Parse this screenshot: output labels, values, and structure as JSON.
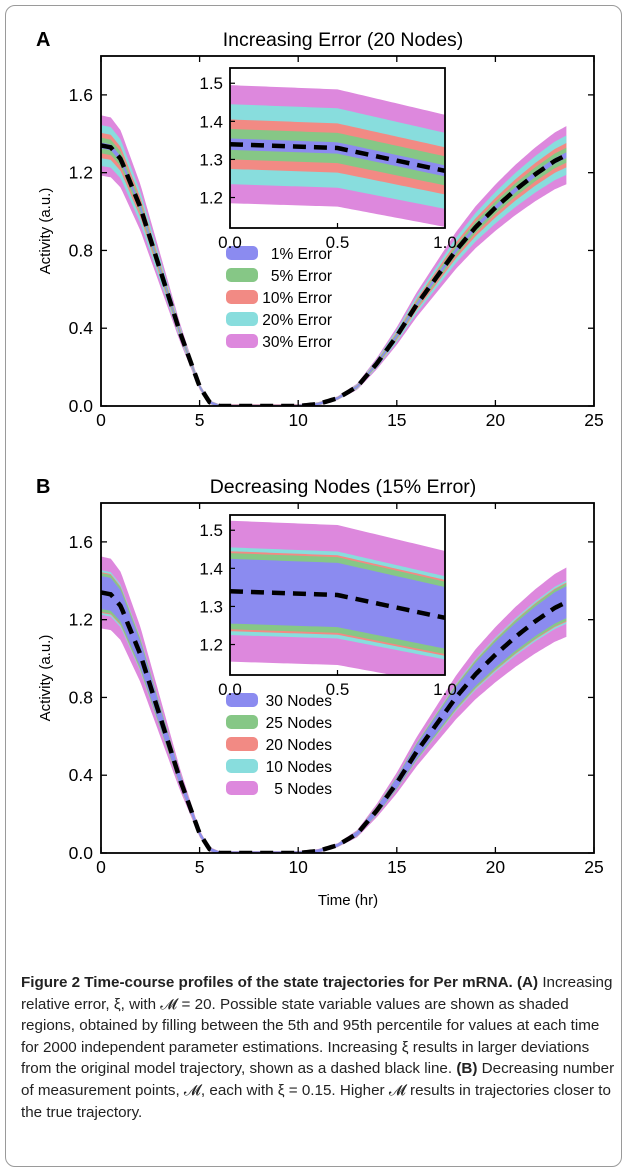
{
  "chart_data": [
    {
      "type": "area",
      "panel_label": "A",
      "title": "Increasing Error (20 Nodes)",
      "xlabel": "",
      "ylabel": "Activity (a.u.)",
      "xlim": [
        0,
        25
      ],
      "ylim": [
        0.0,
        1.8
      ],
      "x_ticks": [
        "0",
        "5",
        "10",
        "15",
        "20",
        "25"
      ],
      "y_ticks": [
        "0.0",
        "0.4",
        "0.8",
        "1.2",
        "1.6"
      ],
      "legend": [
        "1% Error",
        "5% Error",
        "10% Error",
        "20% Error",
        "30% Error"
      ],
      "legend_placement": "center",
      "series": [
        {
          "name": "30% Error",
          "color": "#dd88dd",
          "half_width": 0.15
        },
        {
          "name": "20% Error",
          "color": "#88dddd",
          "half_width": 0.1
        },
        {
          "name": "10% Error",
          "color": "#f28a84",
          "half_width": 0.06
        },
        {
          "name": "5% Error",
          "color": "#86c786",
          "half_width": 0.035
        },
        {
          "name": "1% Error",
          "color": "#8b8bf0",
          "half_width": 0.01
        }
      ],
      "inset": {
        "xlim": [
          0.0,
          1.0
        ],
        "ylim": [
          1.12,
          1.54
        ],
        "x_ticks": [
          "0.0",
          "0.5",
          "1.0"
        ],
        "y_ticks": [
          "1.2",
          "1.3",
          "1.4",
          "1.5"
        ]
      }
    },
    {
      "type": "area",
      "panel_label": "B",
      "title": "Decreasing Nodes (15% Error)",
      "xlabel": "Time (hr)",
      "ylabel": "Activity (a.u.)",
      "xlim": [
        0,
        25
      ],
      "ylim": [
        0.0,
        1.8
      ],
      "x_ticks": [
        "0",
        "5",
        "10",
        "15",
        "20",
        "25"
      ],
      "y_ticks": [
        "0.0",
        "0.4",
        "0.8",
        "1.2",
        "1.6"
      ],
      "legend": [
        "30 Nodes",
        "25 Nodes",
        "20 Nodes",
        "10 Nodes",
        "5 Nodes"
      ],
      "legend_placement": "center",
      "series": [
        {
          "name": "5 Nodes",
          "color": "#dd88dd",
          "half_width": 0.18
        },
        {
          "name": "10 Nodes",
          "color": "#88dddd",
          "half_width": 0.11
        },
        {
          "name": "20 Nodes",
          "color": "#f28a84",
          "half_width": 0.1
        },
        {
          "name": "25 Nodes",
          "color": "#86c786",
          "half_width": 0.095
        },
        {
          "name": "30 Nodes",
          "color": "#8b8bf0",
          "half_width": 0.08
        }
      ],
      "inset": {
        "xlim": [
          0.0,
          1.0
        ],
        "ylim": [
          1.12,
          1.54
        ],
        "x_ticks": [
          "0.0",
          "0.5",
          "1.0"
        ],
        "y_ticks": [
          "1.2",
          "1.3",
          "1.4",
          "1.5"
        ]
      }
    }
  ],
  "true_trajectory": {
    "color": "#000000",
    "points": [
      [
        0,
        1.34
      ],
      [
        0.5,
        1.33
      ],
      [
        1,
        1.27
      ],
      [
        2,
        1.02
      ],
      [
        3,
        0.7
      ],
      [
        4,
        0.38
      ],
      [
        5,
        0.1
      ],
      [
        5.5,
        0.02
      ],
      [
        6,
        0
      ],
      [
        10,
        0
      ],
      [
        11,
        0.01
      ],
      [
        12,
        0.04
      ],
      [
        13,
        0.1
      ],
      [
        14,
        0.22
      ],
      [
        15,
        0.36
      ],
      [
        16,
        0.52
      ],
      [
        17,
        0.66
      ],
      [
        18,
        0.8
      ],
      [
        19,
        0.92
      ],
      [
        20,
        1.02
      ],
      [
        21,
        1.11
      ],
      [
        22,
        1.19
      ],
      [
        23,
        1.26
      ],
      [
        23.6,
        1.29
      ]
    ]
  },
  "caption": {
    "title": "Figure 2 Time-course profiles of the state trajectories for Per mRNA.",
    "part_a_label": "(A)",
    "part_a_text": "Increasing relative error, ξ, with 𝓜 = 20. Possible state variable values are shown as shaded regions, obtained by filling between the 5th and 95th percentile for values at each time for 2000 independent parameter estimations. Increasing ξ results in larger deviations from the original model trajectory, shown as a dashed black line.",
    "part_b_label": "(B)",
    "part_b_text": "Decreasing number of measurement points, 𝓜, each with ξ = 0.15. Higher 𝓜 results in trajectories closer to the true trajectory."
  }
}
